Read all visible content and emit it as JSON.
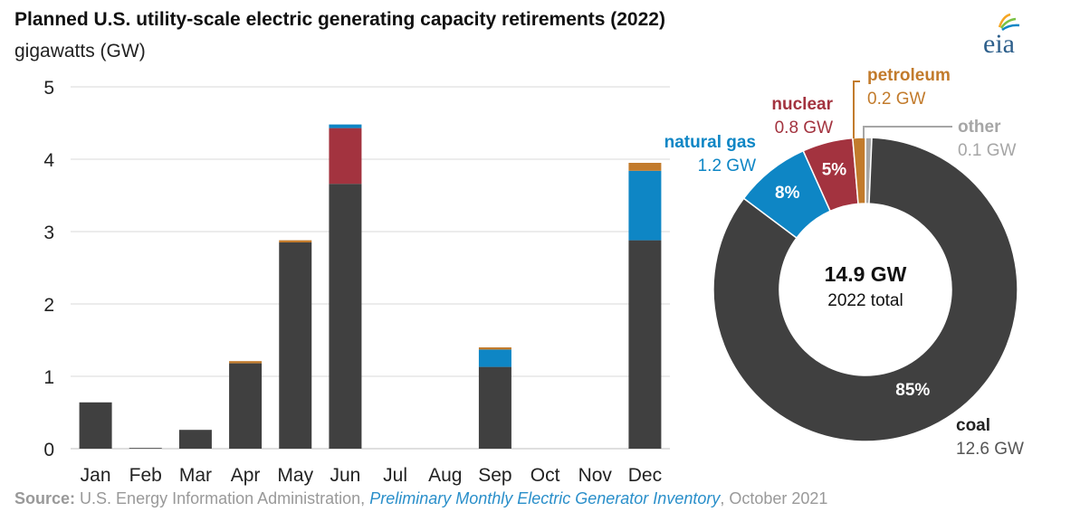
{
  "header": {
    "title": "Planned U.S. utility-scale electric generating capacity retirements (2022)",
    "subtitle": "gigawatts (GW)",
    "logo_text": "eia"
  },
  "source": {
    "label": "Source:",
    "agency": "U.S. Energy Information Administration,",
    "publication": "Preliminary Monthly Electric Generator Inventory",
    "date": ", October 2021"
  },
  "colors": {
    "coal": "#404040",
    "natural_gas": "#0e86c5",
    "nuclear": "#a3333f",
    "petroleum": "#c27b2c",
    "other": "#a6a6a6"
  },
  "chart_data": [
    {
      "type": "bar",
      "stacked": true,
      "categories": [
        "Jan",
        "Feb",
        "Mar",
        "Apr",
        "May",
        "Jun",
        "Jul",
        "Aug",
        "Sep",
        "Oct",
        "Nov",
        "Dec"
      ],
      "yticks": [
        0,
        1,
        2,
        3,
        4,
        5
      ],
      "ylim": [
        0,
        5
      ],
      "grid": true,
      "series": [
        {
          "key": "coal",
          "values": [
            0.64,
            0.01,
            0.26,
            1.18,
            2.85,
            3.66,
            0,
            0,
            1.13,
            0,
            0,
            2.88
          ]
        },
        {
          "key": "nuclear",
          "values": [
            0,
            0,
            0,
            0,
            0,
            0.77,
            0,
            0,
            0,
            0,
            0,
            0
          ]
        },
        {
          "key": "natural_gas",
          "values": [
            0,
            0,
            0,
            0,
            0,
            0.05,
            0,
            0,
            0.24,
            0,
            0,
            0.96
          ]
        },
        {
          "key": "petroleum",
          "values": [
            0,
            0,
            0,
            0.03,
            0.03,
            0,
            0,
            0,
            0.03,
            0,
            0,
            0.11
          ]
        }
      ]
    },
    {
      "type": "pie",
      "donut": true,
      "center_value": "14.9 GW",
      "center_label": "2022 total",
      "slices": [
        {
          "key": "other",
          "name": "other",
          "value": 0.1,
          "value_label": "0.1 GW",
          "pct_label": ""
        },
        {
          "key": "coal",
          "name": "coal",
          "value": 12.6,
          "value_label": "12.6 GW",
          "pct_label": "85%"
        },
        {
          "key": "natural_gas",
          "name": "natural gas",
          "value": 1.2,
          "value_label": "1.2 GW",
          "pct_label": "8%"
        },
        {
          "key": "nuclear",
          "name": "nuclear",
          "value": 0.8,
          "value_label": "0.8 GW",
          "pct_label": "5%"
        },
        {
          "key": "petroleum",
          "name": "petroleum",
          "value": 0.2,
          "value_label": "0.2 GW",
          "pct_label": ""
        }
      ]
    }
  ]
}
